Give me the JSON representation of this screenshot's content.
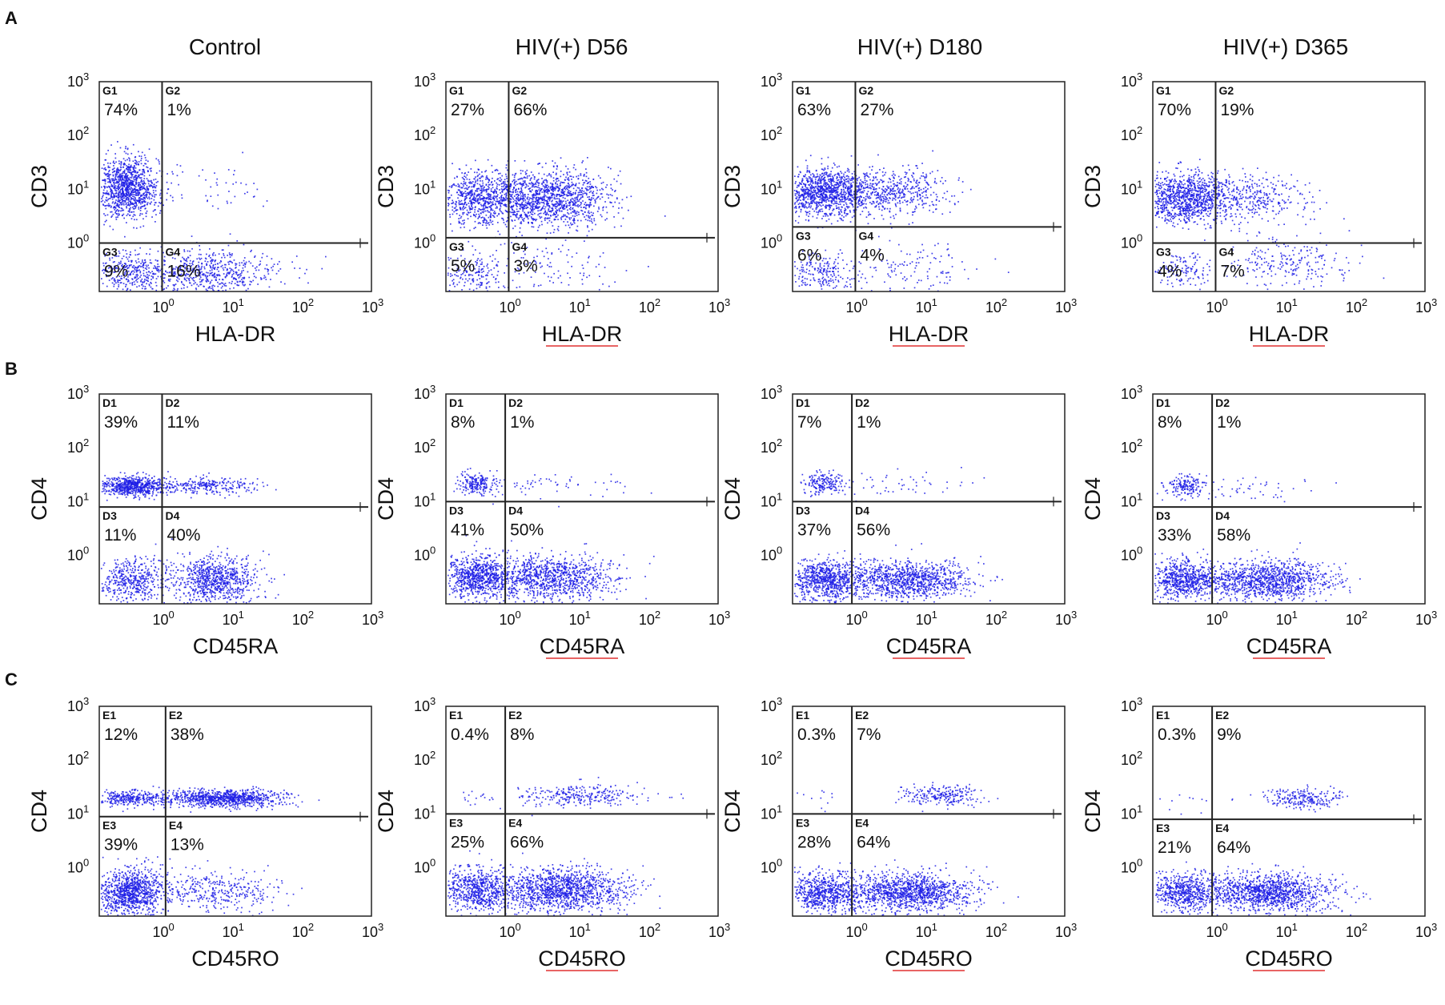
{
  "figure": {
    "column_titles": [
      "Control",
      "HIV(+) D56",
      "HIV(+) D180",
      "HIV(+) D365"
    ],
    "row_labels": [
      "A",
      "B",
      "C"
    ],
    "point_color": "#1f1fe6",
    "gate_color": "#222222",
    "spellcheck_underline_color": "#e03030"
  },
  "chart_data": [
    {
      "row": "A",
      "column": "Control",
      "type": "scatter",
      "xlabel": "HLA-DR",
      "ylabel": "CD3",
      "x_ticks": [
        "10^0",
        "10^1",
        "10^2",
        "10^3"
      ],
      "y_ticks": [
        "10^0",
        "10^1",
        "10^2",
        "10^3"
      ],
      "xlim": [
        -0.9,
        3
      ],
      "ylim": [
        -0.9,
        3
      ],
      "gate": {
        "x": 0,
        "y": 0
      },
      "quadrants": [
        {
          "tag": "G1",
          "pct": "74%"
        },
        {
          "tag": "G2",
          "pct": "1%"
        },
        {
          "tag": "G3",
          "pct": "9%"
        },
        {
          "tag": "G4",
          "pct": "16%"
        }
      ],
      "populations": [
        {
          "cx": -0.5,
          "cy": 1.05,
          "sx": 0.22,
          "sy": 0.28,
          "n": 1100
        },
        {
          "cx": 0.6,
          "cy": -0.55,
          "sx": 0.55,
          "sy": 0.22,
          "n": 650
        },
        {
          "cx": -0.5,
          "cy": -0.55,
          "sx": 0.25,
          "sy": 0.2,
          "n": 260
        },
        {
          "cx": 0.6,
          "cy": 1.05,
          "sx": 0.55,
          "sy": 0.25,
          "n": 50
        }
      ]
    },
    {
      "row": "A",
      "column": "HIV(+) D56",
      "type": "scatter",
      "xlabel": "HLA-DR",
      "ylabel": "CD3",
      "x_ticks": [
        "10^0",
        "10^1",
        "10^2",
        "10^3"
      ],
      "y_ticks": [
        "10^0",
        "10^1",
        "10^2",
        "10^3"
      ],
      "xlim": [
        -0.9,
        3
      ],
      "ylim": [
        -0.9,
        3
      ],
      "gate": {
        "x": 0,
        "y": 0.1
      },
      "quadrants": [
        {
          "tag": "G1",
          "pct": "27%"
        },
        {
          "tag": "G2",
          "pct": "66%"
        },
        {
          "tag": "G3",
          "pct": "5%"
        },
        {
          "tag": "G4",
          "pct": "3%"
        }
      ],
      "populations": [
        {
          "cx": -0.45,
          "cy": 0.85,
          "sx": 0.28,
          "sy": 0.25,
          "n": 650
        },
        {
          "cx": 0.55,
          "cy": 0.85,
          "sx": 0.45,
          "sy": 0.25,
          "n": 1300
        },
        {
          "cx": -0.5,
          "cy": -0.55,
          "sx": 0.25,
          "sy": 0.2,
          "n": 170
        },
        {
          "cx": 0.6,
          "cy": -0.45,
          "sx": 0.45,
          "sy": 0.25,
          "n": 110
        }
      ]
    },
    {
      "row": "A",
      "column": "HIV(+) D180",
      "type": "scatter",
      "xlabel": "HLA-DR",
      "ylabel": "CD3",
      "x_ticks": [
        "10^0",
        "10^1",
        "10^2",
        "10^3"
      ],
      "y_ticks": [
        "10^0",
        "10^1",
        "10^2",
        "10^3"
      ],
      "xlim": [
        -0.9,
        3
      ],
      "ylim": [
        -0.9,
        3
      ],
      "gate": {
        "x": 0,
        "y": 0.3
      },
      "quadrants": [
        {
          "tag": "G1",
          "pct": "63%"
        },
        {
          "tag": "G2",
          "pct": "27%"
        },
        {
          "tag": "G3",
          "pct": "6%"
        },
        {
          "tag": "G4",
          "pct": "4%"
        }
      ],
      "populations": [
        {
          "cx": -0.45,
          "cy": 0.95,
          "sx": 0.3,
          "sy": 0.22,
          "n": 1100
        },
        {
          "cx": 0.5,
          "cy": 0.95,
          "sx": 0.4,
          "sy": 0.22,
          "n": 500
        },
        {
          "cx": -0.5,
          "cy": -0.55,
          "sx": 0.25,
          "sy": 0.18,
          "n": 200
        },
        {
          "cx": 0.8,
          "cy": -0.45,
          "sx": 0.5,
          "sy": 0.25,
          "n": 130
        }
      ]
    },
    {
      "row": "A",
      "column": "HIV(+) D365",
      "type": "scatter",
      "xlabel": "HLA-DR",
      "ylabel": "CD3",
      "x_ticks": [
        "10^0",
        "10^1",
        "10^2",
        "10^3"
      ],
      "y_ticks": [
        "10^0",
        "10^1",
        "10^2",
        "10^3"
      ],
      "xlim": [
        -0.9,
        3
      ],
      "ylim": [
        -0.9,
        3
      ],
      "gate": {
        "x": 0,
        "y": 0
      },
      "quadrants": [
        {
          "tag": "G1",
          "pct": "70%"
        },
        {
          "tag": "G2",
          "pct": "19%"
        },
        {
          "tag": "G3",
          "pct": "4%"
        },
        {
          "tag": "G4",
          "pct": "7%"
        }
      ],
      "populations": [
        {
          "cx": -0.45,
          "cy": 0.85,
          "sx": 0.3,
          "sy": 0.22,
          "n": 1000
        },
        {
          "cx": 0.5,
          "cy": 0.85,
          "sx": 0.4,
          "sy": 0.22,
          "n": 350
        },
        {
          "cx": -0.5,
          "cy": -0.55,
          "sx": 0.25,
          "sy": 0.18,
          "n": 130
        },
        {
          "cx": 1.0,
          "cy": -0.4,
          "sx": 0.45,
          "sy": 0.25,
          "n": 240
        }
      ]
    },
    {
      "row": "B",
      "column": "Control",
      "type": "scatter",
      "xlabel": "CD45RA",
      "ylabel": "CD4",
      "x_ticks": [
        "10^0",
        "10^1",
        "10^2",
        "10^3"
      ],
      "y_ticks": [
        "10^0",
        "10^1",
        "10^2",
        "10^3"
      ],
      "xlim": [
        -0.9,
        3
      ],
      "ylim": [
        -0.9,
        3
      ],
      "gate": {
        "x": 0,
        "y": 0.9
      },
      "quadrants": [
        {
          "tag": "D1",
          "pct": "39%"
        },
        {
          "tag": "D2",
          "pct": "11%"
        },
        {
          "tag": "D3",
          "pct": "11%"
        },
        {
          "tag": "D4",
          "pct": "40%"
        }
      ],
      "populations": [
        {
          "cx": -0.45,
          "cy": 1.3,
          "sx": 0.25,
          "sy": 0.09,
          "n": 650
        },
        {
          "cx": 0.6,
          "cy": 1.3,
          "sx": 0.35,
          "sy": 0.08,
          "n": 260
        },
        {
          "cx": -0.45,
          "cy": -0.45,
          "sx": 0.25,
          "sy": 0.22,
          "n": 450
        },
        {
          "cx": 0.75,
          "cy": -0.45,
          "sx": 0.3,
          "sy": 0.22,
          "n": 800
        }
      ]
    },
    {
      "row": "B",
      "column": "HIV(+) D56",
      "type": "scatter",
      "xlabel": "CD45RA",
      "ylabel": "CD4",
      "x_ticks": [
        "10^0",
        "10^1",
        "10^2",
        "10^3"
      ],
      "y_ticks": [
        "10^0",
        "10^1",
        "10^2",
        "10^3"
      ],
      "xlim": [
        -0.9,
        3
      ],
      "ylim": [
        -0.9,
        3
      ],
      "gate": {
        "x": -0.05,
        "y": 1.0
      },
      "quadrants": [
        {
          "tag": "D1",
          "pct": "8%"
        },
        {
          "tag": "D2",
          "pct": "1%"
        },
        {
          "tag": "D3",
          "pct": "41%"
        },
        {
          "tag": "D4",
          "pct": "50%"
        }
      ],
      "populations": [
        {
          "cx": -0.45,
          "cy": 1.35,
          "sx": 0.15,
          "sy": 0.1,
          "n": 200
        },
        {
          "cx": 0.7,
          "cy": 1.3,
          "sx": 0.6,
          "sy": 0.12,
          "n": 60
        },
        {
          "cx": -0.45,
          "cy": -0.4,
          "sx": 0.25,
          "sy": 0.2,
          "n": 800
        },
        {
          "cx": 0.6,
          "cy": -0.4,
          "sx": 0.45,
          "sy": 0.2,
          "n": 1000
        }
      ]
    },
    {
      "row": "B",
      "column": "HIV(+) D180",
      "type": "scatter",
      "xlabel": "CD45RA",
      "ylabel": "CD4",
      "x_ticks": [
        "10^0",
        "10^1",
        "10^2",
        "10^3"
      ],
      "y_ticks": [
        "10^0",
        "10^1",
        "10^2",
        "10^3"
      ],
      "xlim": [
        -0.9,
        3
      ],
      "ylim": [
        -0.9,
        3
      ],
      "gate": {
        "x": -0.05,
        "y": 1.0
      },
      "quadrants": [
        {
          "tag": "D1",
          "pct": "7%"
        },
        {
          "tag": "D2",
          "pct": "1%"
        },
        {
          "tag": "D3",
          "pct": "37%"
        },
        {
          "tag": "D4",
          "pct": "56%"
        }
      ],
      "populations": [
        {
          "cx": -0.45,
          "cy": 1.35,
          "sx": 0.15,
          "sy": 0.1,
          "n": 180
        },
        {
          "cx": 0.6,
          "cy": 1.3,
          "sx": 0.5,
          "sy": 0.12,
          "n": 50
        },
        {
          "cx": -0.45,
          "cy": -0.45,
          "sx": 0.25,
          "sy": 0.18,
          "n": 750
        },
        {
          "cx": 0.7,
          "cy": -0.45,
          "sx": 0.45,
          "sy": 0.18,
          "n": 1050
        }
      ]
    },
    {
      "row": "B",
      "column": "HIV(+) D365",
      "type": "scatter",
      "xlabel": "CD45RA",
      "ylabel": "CD4",
      "x_ticks": [
        "10^0",
        "10^1",
        "10^2",
        "10^3"
      ],
      "y_ticks": [
        "10^0",
        "10^1",
        "10^2",
        "10^3"
      ],
      "xlim": [
        -0.9,
        3
      ],
      "ylim": [
        -0.9,
        3
      ],
      "gate": {
        "x": -0.05,
        "y": 0.9
      },
      "quadrants": [
        {
          "tag": "D1",
          "pct": "8%"
        },
        {
          "tag": "D2",
          "pct": "1%"
        },
        {
          "tag": "D3",
          "pct": "33%"
        },
        {
          "tag": "D4",
          "pct": "58%"
        }
      ],
      "populations": [
        {
          "cx": -0.45,
          "cy": 1.3,
          "sx": 0.15,
          "sy": 0.1,
          "n": 170
        },
        {
          "cx": 0.5,
          "cy": 1.25,
          "sx": 0.45,
          "sy": 0.12,
          "n": 45
        },
        {
          "cx": -0.45,
          "cy": -0.45,
          "sx": 0.25,
          "sy": 0.18,
          "n": 700
        },
        {
          "cx": 0.75,
          "cy": -0.45,
          "sx": 0.45,
          "sy": 0.18,
          "n": 1100
        }
      ]
    },
    {
      "row": "C",
      "column": "Control",
      "type": "scatter",
      "xlabel": "CD45RO",
      "ylabel": "CD4",
      "x_ticks": [
        "10^0",
        "10^1",
        "10^2",
        "10^3"
      ],
      "y_ticks": [
        "10^0",
        "10^1",
        "10^2",
        "10^3"
      ],
      "xlim": [
        -0.9,
        3
      ],
      "ylim": [
        -0.9,
        3
      ],
      "gate": {
        "x": 0.05,
        "y": 0.95
      },
      "quadrants": [
        {
          "tag": "E1",
          "pct": "12%"
        },
        {
          "tag": "E2",
          "pct": "38%"
        },
        {
          "tag": "E3",
          "pct": "39%"
        },
        {
          "tag": "E4",
          "pct": "13%"
        }
      ],
      "populations": [
        {
          "cx": -0.45,
          "cy": 1.3,
          "sx": 0.25,
          "sy": 0.07,
          "n": 300
        },
        {
          "cx": 0.85,
          "cy": 1.3,
          "sx": 0.45,
          "sy": 0.08,
          "n": 900
        },
        {
          "cx": -0.45,
          "cy": -0.45,
          "sx": 0.25,
          "sy": 0.22,
          "n": 1000
        },
        {
          "cx": 0.8,
          "cy": -0.45,
          "sx": 0.45,
          "sy": 0.2,
          "n": 350
        }
      ]
    },
    {
      "row": "C",
      "column": "HIV(+) D56",
      "type": "scatter",
      "xlabel": "CD45RO",
      "ylabel": "CD4",
      "x_ticks": [
        "10^0",
        "10^1",
        "10^2",
        "10^3"
      ],
      "y_ticks": [
        "10^0",
        "10^1",
        "10^2",
        "10^3"
      ],
      "xlim": [
        -0.9,
        3
      ],
      "ylim": [
        -0.9,
        3
      ],
      "gate": {
        "x": -0.05,
        "y": 1.0
      },
      "quadrants": [
        {
          "tag": "E1",
          "pct": "0.4%"
        },
        {
          "tag": "E2",
          "pct": "8%"
        },
        {
          "tag": "E3",
          "pct": "25%"
        },
        {
          "tag": "E4",
          "pct": "66%"
        }
      ],
      "populations": [
        {
          "cx": -0.5,
          "cy": 1.3,
          "sx": 0.2,
          "sy": 0.1,
          "n": 15
        },
        {
          "cx": 1.0,
          "cy": 1.35,
          "sx": 0.4,
          "sy": 0.1,
          "n": 280
        },
        {
          "cx": -0.45,
          "cy": -0.4,
          "sx": 0.25,
          "sy": 0.2,
          "n": 650
        },
        {
          "cx": 0.75,
          "cy": -0.4,
          "sx": 0.45,
          "sy": 0.2,
          "n": 1300
        }
      ]
    },
    {
      "row": "C",
      "column": "HIV(+) D180",
      "type": "scatter",
      "xlabel": "CD45RO",
      "ylabel": "CD4",
      "x_ticks": [
        "10^0",
        "10^1",
        "10^2",
        "10^3"
      ],
      "y_ticks": [
        "10^0",
        "10^1",
        "10^2",
        "10^3"
      ],
      "xlim": [
        -0.9,
        3
      ],
      "ylim": [
        -0.9,
        3
      ],
      "gate": {
        "x": -0.05,
        "y": 1.0
      },
      "quadrants": [
        {
          "tag": "E1",
          "pct": "0.3%"
        },
        {
          "tag": "E2",
          "pct": "7%"
        },
        {
          "tag": "E3",
          "pct": "28%"
        },
        {
          "tag": "E4",
          "pct": "64%"
        }
      ],
      "populations": [
        {
          "cx": -0.5,
          "cy": 1.3,
          "sx": 0.2,
          "sy": 0.1,
          "n": 12
        },
        {
          "cx": 1.2,
          "cy": 1.35,
          "sx": 0.3,
          "sy": 0.1,
          "n": 230
        },
        {
          "cx": -0.45,
          "cy": -0.45,
          "sx": 0.25,
          "sy": 0.18,
          "n": 650
        },
        {
          "cx": 0.75,
          "cy": -0.45,
          "sx": 0.45,
          "sy": 0.18,
          "n": 1250
        }
      ]
    },
    {
      "row": "C",
      "column": "HIV(+) D365",
      "type": "scatter",
      "xlabel": "CD45RO",
      "ylabel": "CD4",
      "x_ticks": [
        "10^0",
        "10^1",
        "10^2",
        "10^3"
      ],
      "y_ticks": [
        "10^0",
        "10^1",
        "10^2",
        "10^3"
      ],
      "xlim": [
        -0.9,
        3
      ],
      "ylim": [
        -0.9,
        3
      ],
      "gate": {
        "x": -0.05,
        "y": 0.9
      },
      "quadrants": [
        {
          "tag": "E1",
          "pct": "0.3%"
        },
        {
          "tag": "E2",
          "pct": "9%"
        },
        {
          "tag": "E3",
          "pct": "21%"
        },
        {
          "tag": "E4",
          "pct": "64%"
        }
      ],
      "populations": [
        {
          "cx": -0.5,
          "cy": 1.25,
          "sx": 0.2,
          "sy": 0.1,
          "n": 10
        },
        {
          "cx": 1.25,
          "cy": 1.3,
          "sx": 0.3,
          "sy": 0.1,
          "n": 230
        },
        {
          "cx": -0.45,
          "cy": -0.45,
          "sx": 0.25,
          "sy": 0.18,
          "n": 600
        },
        {
          "cx": 0.75,
          "cy": -0.45,
          "sx": 0.45,
          "sy": 0.18,
          "n": 1200
        }
      ]
    }
  ]
}
